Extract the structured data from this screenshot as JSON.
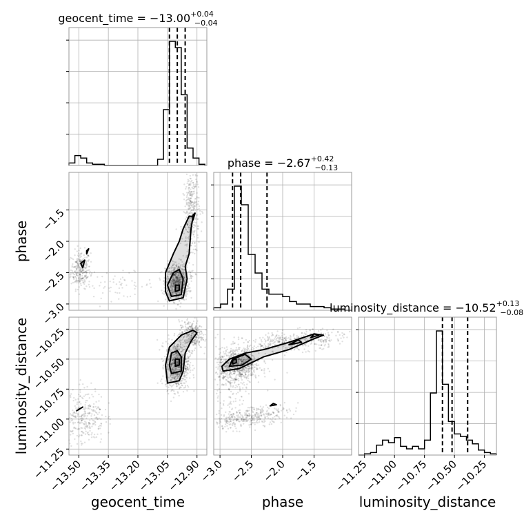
{
  "chart_data": {
    "type": "corner",
    "parameters": [
      "geocent_time",
      "phase",
      "luminosity_distance"
    ],
    "grid": true,
    "titles": [
      {
        "param": "geocent_time",
        "prefix": "geocent_time = ",
        "median": "−13.00",
        "plus": "+0.04",
        "minus": "−0.04"
      },
      {
        "param": "phase",
        "prefix": "phase = ",
        "median": "−2.67",
        "plus": "+0.42",
        "minus": "−0.13"
      },
      {
        "param": "luminosity_distance",
        "prefix": "luminosity_distance = ",
        "median": "−10.52",
        "plus": "+0.13",
        "minus": "−0.08"
      }
    ],
    "axes": {
      "geocent_time": {
        "range": [
          -13.55,
          -12.85
        ],
        "ticks": [
          -13.5,
          -13.35,
          -13.2,
          -13.05,
          -12.9
        ],
        "tick_labels": [
          "−13.50",
          "−13.35",
          "−13.20",
          "−13.05",
          "−12.90"
        ]
      },
      "phase": {
        "range": [
          -3.1,
          -0.9
        ],
        "ticks": [
          -3.0,
          -2.5,
          -2.0,
          -1.5
        ],
        "tick_labels": [
          "−3.0",
          "−2.5",
          "−2.0",
          "−1.5"
        ]
      },
      "luminosity_distance": {
        "range": [
          -11.3,
          -10.15
        ],
        "ticks": [
          -11.25,
          -11.0,
          -10.75,
          -10.5,
          -10.25
        ],
        "tick_labels": [
          "−11.25",
          "−11.00",
          "−10.75",
          "−10.50",
          "−10.25"
        ]
      }
    },
    "histograms": {
      "geocent_time": {
        "bins": [
          -13.55,
          -13.52,
          -13.49,
          -13.46,
          -13.43,
          -13.4,
          -13.37,
          -13.34,
          -13.31,
          -13.28,
          -13.25,
          -13.22,
          -13.19,
          -13.16,
          -13.13,
          -13.1,
          -13.07,
          -13.04,
          -13.01,
          -12.98,
          -12.95,
          -12.92,
          -12.89,
          -12.86
        ],
        "counts": [
          2,
          8,
          6,
          2,
          1,
          1,
          0,
          0,
          0,
          0,
          0,
          0,
          0,
          0,
          0,
          5,
          45,
          100,
          95,
          57,
          14,
          6,
          1
        ],
        "quantiles": [
          -13.04,
          -13.0,
          -12.96
        ]
      },
      "phase": {
        "bins": [
          -3.1,
          -2.99,
          -2.88,
          -2.77,
          -2.66,
          -2.55,
          -2.44,
          -2.33,
          -2.22,
          -2.11,
          -2.0,
          -1.89,
          -1.78,
          -1.67,
          -1.56,
          -1.45,
          -1.34,
          -1.23,
          -1.12,
          -1.01,
          -0.9
        ],
        "counts": [
          2,
          5,
          17,
          100,
          85,
          45,
          30,
          17,
          13,
          13,
          11,
          7,
          5,
          5,
          3,
          3,
          2,
          1,
          1,
          0
        ],
        "quantiles": [
          -2.8,
          -2.67,
          -2.25
        ]
      },
      "luminosity_distance": {
        "bins": [
          -11.3,
          -11.25,
          -11.2,
          -11.15,
          -11.1,
          -11.05,
          -11.0,
          -10.95,
          -10.9,
          -10.85,
          -10.8,
          -10.75,
          -10.7,
          -10.65,
          -10.6,
          -10.55,
          -10.5,
          -10.45,
          -10.4,
          -10.35,
          -10.3,
          -10.25,
          -10.2,
          -10.15
        ],
        "counts": [
          0,
          1,
          2,
          8,
          12,
          10,
          14,
          7,
          5,
          7,
          5,
          12,
          50,
          100,
          57,
          27,
          17,
          15,
          12,
          9,
          4,
          2,
          1
        ],
        "quantiles": [
          -10.6,
          -10.52,
          -10.39
        ]
      }
    },
    "scatter_clusters": [
      {
        "x": "geocent_time",
        "y": "phase",
        "cx": -13.49,
        "cy": -2.45,
        "sx": 0.025,
        "sy": 0.15,
        "n": 260,
        "slope": 0
      },
      {
        "x": "geocent_time",
        "y": "phase",
        "cx": -13.3,
        "cy": -2.7,
        "sx": 0.09,
        "sy": 0.1,
        "n": 60,
        "slope": 0
      },
      {
        "x": "geocent_time",
        "y": "phase",
        "cx": -13.0,
        "cy": -2.65,
        "sx": 0.03,
        "sy": 0.15,
        "n": 700,
        "slope": 0
      },
      {
        "x": "geocent_time",
        "y": "phase",
        "cx": -12.93,
        "cy": -1.6,
        "sx": 0.02,
        "sy": 0.4,
        "n": 350,
        "slope": 0.06
      },
      {
        "x": "geocent_time",
        "y": "luminosity_distance",
        "cx": -13.0,
        "cy": -10.55,
        "sx": 0.03,
        "sy": 0.1,
        "n": 700,
        "slope": 0
      },
      {
        "x": "geocent_time",
        "y": "luminosity_distance",
        "cx": -12.93,
        "cy": -10.3,
        "sx": 0.03,
        "sy": 0.06,
        "n": 300,
        "slope": 0
      },
      {
        "x": "geocent_time",
        "y": "luminosity_distance",
        "cx": -13.47,
        "cy": -10.97,
        "sx": 0.05,
        "sy": 0.12,
        "n": 280,
        "slope": 0
      },
      {
        "x": "phase",
        "y": "luminosity_distance",
        "cx": -2.7,
        "cy": -10.55,
        "sx": 0.18,
        "sy": 0.07,
        "n": 650,
        "slope": 0
      },
      {
        "x": "phase",
        "y": "luminosity_distance",
        "cx": -1.8,
        "cy": -10.35,
        "sx": 0.4,
        "sy": 0.04,
        "n": 380,
        "slope": 0.12
      },
      {
        "x": "phase",
        "y": "luminosity_distance",
        "cx": -2.5,
        "cy": -10.98,
        "sx": 0.3,
        "sy": 0.04,
        "n": 320,
        "slope": 0.2
      },
      {
        "x": "phase",
        "y": "luminosity_distance",
        "cx": -2.85,
        "cy": -10.75,
        "sx": 0.15,
        "sy": 0.15,
        "n": 150,
        "slope": 0
      }
    ],
    "contours": [
      {
        "x": "geocent_time",
        "y": "phase",
        "points": [
          [
            -13.04,
            -2.95
          ],
          [
            -12.97,
            -2.9
          ],
          [
            -12.95,
            -2.6
          ],
          [
            -12.96,
            -2.4
          ],
          [
            -12.94,
            -2.2
          ],
          [
            -12.93,
            -1.8
          ],
          [
            -12.92,
            -1.6
          ],
          [
            -12.94,
            -1.6
          ],
          [
            -12.97,
            -1.8
          ],
          [
            -12.99,
            -2.0
          ],
          [
            -13.02,
            -2.2
          ],
          [
            -13.06,
            -2.5
          ],
          [
            -13.06,
            -2.8
          ]
        ]
      },
      {
        "x": "geocent_time",
        "y": "phase",
        "points": [
          [
            -13.03,
            -2.88
          ],
          [
            -12.98,
            -2.85
          ],
          [
            -12.97,
            -2.6
          ],
          [
            -12.99,
            -2.45
          ],
          [
            -13.02,
            -2.5
          ],
          [
            -13.05,
            -2.7
          ]
        ]
      },
      {
        "x": "geocent_time",
        "y": "phase",
        "points": [
          [
            -13.01,
            -2.8
          ],
          [
            -12.99,
            -2.78
          ],
          [
            -12.99,
            -2.7
          ],
          [
            -13.01,
            -2.7
          ]
        ]
      },
      {
        "x": "geocent_time",
        "y": "phase",
        "points": [
          [
            -13.48,
            -2.42
          ],
          [
            -13.47,
            -2.3
          ],
          [
            -13.49,
            -2.35
          ]
        ]
      },
      {
        "x": "geocent_time",
        "y": "phase",
        "points": [
          [
            -13.46,
            -2.2
          ],
          [
            -13.45,
            -2.12
          ],
          [
            -13.46,
            -2.15
          ]
        ]
      },
      {
        "x": "geocent_time",
        "y": "phase",
        "points": [
          [
            -12.92,
            -1.66
          ],
          [
            -12.91,
            -1.55
          ],
          [
            -12.92,
            -1.58
          ]
        ]
      },
      {
        "x": "geocent_time",
        "y": "luminosity_distance",
        "points": [
          [
            -13.05,
            -10.7
          ],
          [
            -12.99,
            -10.68
          ],
          [
            -12.97,
            -10.6
          ],
          [
            -12.96,
            -10.45
          ],
          [
            -12.93,
            -10.35
          ],
          [
            -12.9,
            -10.28
          ],
          [
            -12.92,
            -10.26
          ],
          [
            -12.98,
            -10.3
          ],
          [
            -13.04,
            -10.4
          ],
          [
            -13.06,
            -10.55
          ]
        ]
      },
      {
        "x": "geocent_time",
        "y": "luminosity_distance",
        "points": [
          [
            -13.03,
            -10.62
          ],
          [
            -12.98,
            -10.6
          ],
          [
            -12.98,
            -10.48
          ],
          [
            -13.0,
            -10.43
          ],
          [
            -13.03,
            -10.45
          ],
          [
            -13.04,
            -10.55
          ]
        ]
      },
      {
        "x": "geocent_time",
        "y": "luminosity_distance",
        "points": [
          [
            -13.01,
            -10.56
          ],
          [
            -12.99,
            -10.55
          ],
          [
            -12.99,
            -10.5
          ],
          [
            -13.01,
            -10.5
          ]
        ]
      },
      {
        "x": "geocent_time",
        "y": "luminosity_distance",
        "points": [
          [
            -13.51,
            -10.93
          ],
          [
            -13.48,
            -10.9
          ],
          [
            -13.5,
            -10.92
          ]
        ]
      },
      {
        "x": "phase",
        "y": "luminosity_distance",
        "points": [
          [
            -2.95,
            -10.6
          ],
          [
            -2.7,
            -10.58
          ],
          [
            -2.3,
            -10.48
          ],
          [
            -1.9,
            -10.42
          ],
          [
            -1.5,
            -10.33
          ],
          [
            -1.35,
            -10.3
          ],
          [
            -1.5,
            -10.29
          ],
          [
            -1.9,
            -10.36
          ],
          [
            -2.3,
            -10.42
          ],
          [
            -2.6,
            -10.45
          ],
          [
            -2.85,
            -10.5
          ],
          [
            -2.97,
            -10.56
          ]
        ]
      },
      {
        "x": "phase",
        "y": "luminosity_distance",
        "points": [
          [
            -2.85,
            -10.56
          ],
          [
            -2.65,
            -10.55
          ],
          [
            -2.5,
            -10.5
          ],
          [
            -2.6,
            -10.46
          ],
          [
            -2.8,
            -10.5
          ]
        ]
      },
      {
        "x": "phase",
        "y": "luminosity_distance",
        "points": [
          [
            -2.8,
            -10.54
          ],
          [
            -2.74,
            -10.53
          ],
          [
            -2.74,
            -10.5
          ],
          [
            -2.8,
            -10.51
          ]
        ]
      },
      {
        "x": "phase",
        "y": "luminosity_distance",
        "points": [
          [
            -1.9,
            -10.38
          ],
          [
            -1.7,
            -10.36
          ],
          [
            -1.75,
            -10.34
          ]
        ]
      },
      {
        "x": "phase",
        "y": "luminosity_distance",
        "points": [
          [
            -1.55,
            -10.32
          ],
          [
            -1.42,
            -10.3
          ],
          [
            -1.5,
            -10.29
          ]
        ]
      },
      {
        "x": "phase",
        "y": "luminosity_distance",
        "points": [
          [
            -2.2,
            -10.89
          ],
          [
            -2.1,
            -10.88
          ],
          [
            -2.15,
            -10.87
          ]
        ]
      }
    ]
  }
}
